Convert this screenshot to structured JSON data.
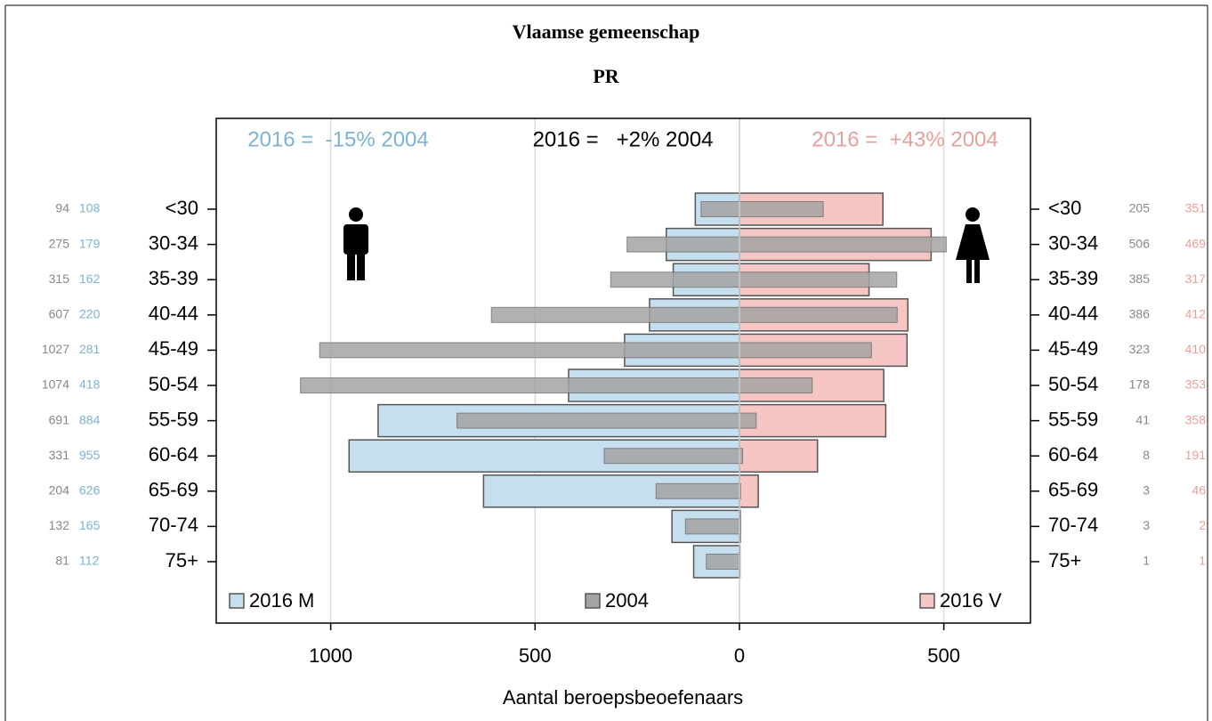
{
  "chart_data": {
    "type": "pyramid",
    "title": "Vlaamse gemeenschap",
    "subtitle": "PR",
    "xlabel": "Aantal beroepsbeoefenaars",
    "categories": [
      "<30",
      "30-34",
      "35-39",
      "40-44",
      "45-49",
      "50-54",
      "55-59",
      "60-64",
      "65-69",
      "70-74",
      "75+"
    ],
    "xlim": [
      -1280,
      712
    ],
    "xticks": [
      {
        "value": -1000,
        "label": "1000"
      },
      {
        "value": -500,
        "label": "500"
      },
      0,
      500
    ],
    "grid": true,
    "annotations": [
      {
        "text": "2016 =  -15% 2004",
        "color": "#7ab3d3"
      },
      {
        "text": "2016 =   +2% 2004",
        "color": "#000000"
      },
      {
        "text": "2016 =  +43% 2004",
        "color": "#e8a09c"
      }
    ],
    "series": [
      {
        "name": "2016 M",
        "side": "left",
        "layer": "wide",
        "color": "#c6dfee",
        "label_color": "#7ab3d3",
        "values": [
          108,
          179,
          162,
          220,
          281,
          418,
          884,
          955,
          626,
          165,
          112
        ]
      },
      {
        "name": "2016 V",
        "side": "right",
        "layer": "wide",
        "color": "#f5c6c3",
        "label_color": "#e8a09c",
        "values": [
          351,
          469,
          317,
          412,
          410,
          353,
          358,
          191,
          46,
          2,
          1
        ]
      },
      {
        "name": "2004",
        "side": "left",
        "layer": "narrow",
        "color": "#a3a3a3",
        "label_color": "#888888",
        "values": [
          94,
          275,
          315,
          607,
          1027,
          1074,
          691,
          331,
          204,
          132,
          81
        ]
      },
      {
        "side": "right",
        "layer": "narrow",
        "color": "#a3a3a3",
        "label_color": "#888888",
        "values": [
          205,
          506,
          385,
          386,
          323,
          178,
          41,
          8,
          3,
          3,
          1
        ]
      }
    ]
  }
}
